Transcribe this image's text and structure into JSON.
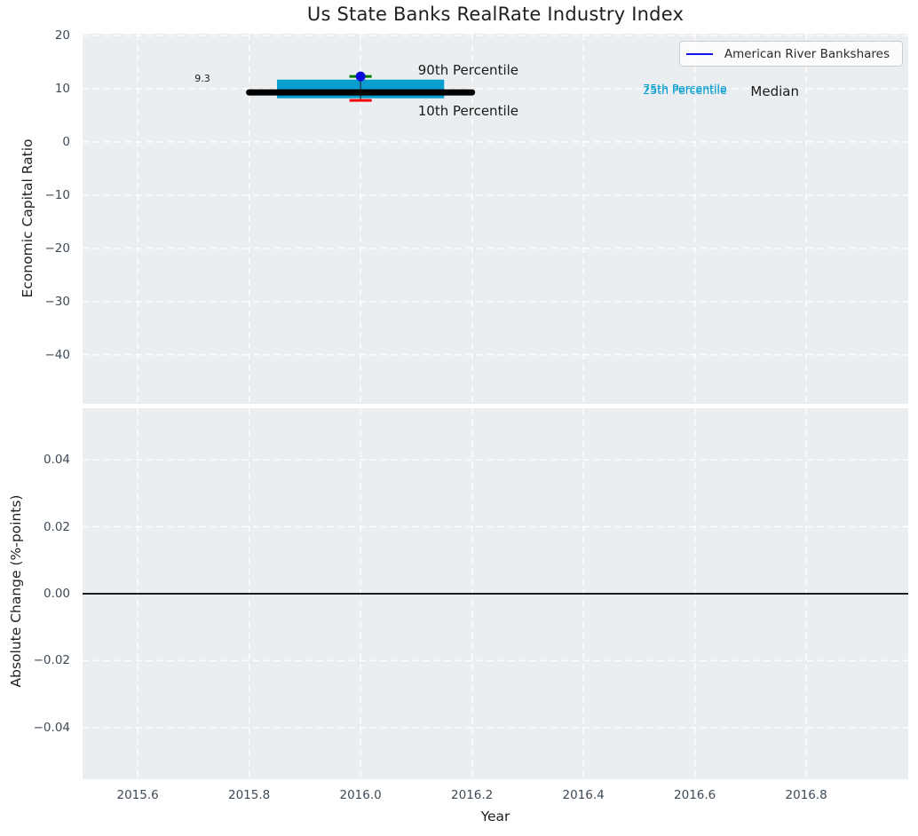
{
  "colors": {
    "plot_bg": "#ebeef0",
    "grid": "#ffffff",
    "tick_label": "#3d4a57",
    "text": "#1f1f1f",
    "series_blue": "#1414e6"
  },
  "chart_data": [
    {
      "type": "box",
      "title": "Us State Banks RealRate Industry Index",
      "ylabel": "Economic Capital Ratio",
      "grid": true,
      "xlim": [
        2015.501,
        2016.983
      ],
      "ylim": [
        -49.2,
        20.33
      ],
      "yticks": {
        "values": [
          20,
          10,
          0,
          -10,
          -20,
          -30,
          -40
        ],
        "labels": [
          "20",
          "10",
          "0",
          "−10",
          "−20",
          "−30",
          "−40"
        ]
      },
      "xticks": {
        "values": [
          2015.6,
          2015.8,
          2016.0,
          2016.2,
          2016.4,
          2016.6,
          2016.8
        ],
        "labels": []
      },
      "legend": {
        "position": "upper right",
        "entries": [
          {
            "label": "American River Bankshares",
            "color": "#1414e6"
          }
        ]
      },
      "box": {
        "x": 2016.0,
        "x_left": 2015.85,
        "x_right": 2016.15,
        "q1": 8.2,
        "median": 9.3,
        "q3": 11.7,
        "p10": 7.8,
        "p90": 12.3,
        "median_x_left": 2015.8,
        "median_x_right": 2016.2,
        "cap_half_width": 0.02,
        "colors": {
          "box": "#089ece",
          "median": "#000000",
          "whisker": "#2b2b2b",
          "p90_cap": "#008000",
          "p10_cap": "#ef0000"
        }
      },
      "point": {
        "x": 2016.0,
        "y": 12.3,
        "color": "#0a0adc"
      },
      "annotations": [
        {
          "text": "9.3",
          "x": 2015.73,
          "y": 11.8,
          "ha": "right",
          "color": "#1a1a1a",
          "size": 11
        },
        {
          "text": "90th Percentile",
          "x": 2016.103,
          "y": 13.5,
          "ha": "left",
          "color": "#1a1a1a",
          "size": 15
        },
        {
          "text": "10th Percentile",
          "x": 2016.103,
          "y": 5.9,
          "ha": "left",
          "color": "#1a1a1a",
          "size": 15
        },
        {
          "text": "75th Percentile",
          "x": 2016.507,
          "y": 10.05,
          "ha": "left",
          "color": "#089ece",
          "size": 12.5
        },
        {
          "text": "25th Percentile",
          "x": 2016.507,
          "y": 9.72,
          "ha": "left",
          "color": "#089ece",
          "size": 12.5
        },
        {
          "text": "Median",
          "x": 2016.7,
          "y": 9.45,
          "ha": "left",
          "color": "#1a1a1a",
          "size": 15
        }
      ]
    },
    {
      "type": "line",
      "ylabel": "Absolute Change (%-points)",
      "xlabel": "Year",
      "grid": true,
      "xlim": [
        2015.501,
        2016.983
      ],
      "ylim": [
        -0.0554,
        0.0554
      ],
      "yticks": {
        "values": [
          0.04,
          0.02,
          0.0,
          -0.02,
          -0.04
        ],
        "labels": [
          "0.04",
          "0.02",
          "0.00",
          "−0.02",
          "−0.04"
        ]
      },
      "xticks": {
        "values": [
          2015.6,
          2015.8,
          2016.0,
          2016.2,
          2016.4,
          2016.6,
          2016.8
        ],
        "labels": [
          "2015.6",
          "2015.8",
          "2016.0",
          "2016.2",
          "2016.4",
          "2016.6",
          "2016.8"
        ]
      },
      "hline": {
        "y": 0.0,
        "color": "#000000"
      }
    }
  ]
}
